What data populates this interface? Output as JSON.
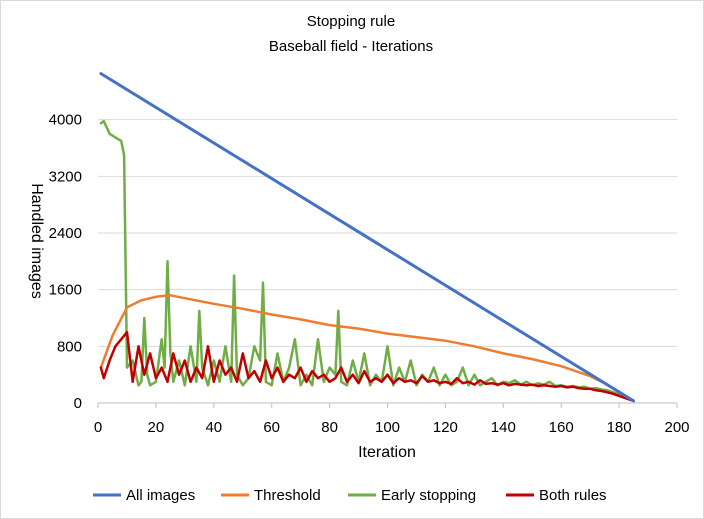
{
  "chart_data": {
    "type": "line",
    "title": "Stopping rule",
    "subtitle": "Baseball field - Iterations",
    "xlabel": "Iteration",
    "ylabel": "Handled images",
    "xlim": [
      0,
      200
    ],
    "ylim": [
      0,
      4800
    ],
    "x_ticks": [
      0,
      20,
      40,
      60,
      80,
      100,
      120,
      140,
      160,
      180,
      200
    ],
    "y_ticks": [
      0,
      800,
      1600,
      2400,
      3200,
      4000
    ],
    "grid": "horizontal",
    "legend_position": "bottom",
    "series": [
      {
        "name": "All images",
        "color": "#4472c4",
        "x": [
          1,
          185
        ],
        "y": [
          4650,
          30
        ]
      },
      {
        "name": "Threshold",
        "color": "#ed7d31",
        "x": [
          1,
          5,
          10,
          15,
          20,
          25,
          30,
          40,
          50,
          60,
          70,
          80,
          90,
          100,
          110,
          120,
          130,
          140,
          150,
          160,
          170,
          175,
          180,
          185
        ],
        "y": [
          500,
          950,
          1350,
          1450,
          1500,
          1520,
          1480,
          1400,
          1330,
          1250,
          1180,
          1100,
          1050,
          980,
          930,
          880,
          800,
          700,
          620,
          520,
          380,
          280,
          150,
          30
        ]
      },
      {
        "name": "Early stopping",
        "color": "#70ad47",
        "x": [
          1,
          2,
          4,
          6,
          8,
          9,
          10,
          12,
          14,
          15,
          16,
          17,
          18,
          20,
          22,
          23,
          24,
          25,
          26,
          28,
          30,
          32,
          34,
          35,
          36,
          38,
          40,
          42,
          44,
          46,
          47,
          48,
          50,
          52,
          54,
          56,
          57,
          58,
          60,
          62,
          64,
          66,
          68,
          70,
          72,
          74,
          76,
          78,
          80,
          82,
          83,
          84,
          86,
          88,
          90,
          92,
          94,
          96,
          98,
          100,
          102,
          104,
          106,
          108,
          110,
          112,
          114,
          116,
          118,
          120,
          122,
          124,
          126,
          128,
          130,
          132,
          134,
          136,
          138,
          140,
          142,
          144,
          146,
          148,
          150,
          152,
          154,
          156,
          158,
          160,
          162,
          164,
          166,
          168,
          170,
          172,
          174,
          176,
          178,
          180,
          182,
          185
        ],
        "y": [
          3950,
          3980,
          3800,
          3750,
          3700,
          3500,
          500,
          600,
          250,
          300,
          1200,
          400,
          250,
          300,
          900,
          500,
          2000,
          700,
          300,
          600,
          250,
          800,
          300,
          1300,
          500,
          250,
          600,
          300,
          800,
          300,
          1800,
          400,
          250,
          350,
          800,
          600,
          1700,
          300,
          250,
          700,
          300,
          500,
          900,
          250,
          400,
          250,
          900,
          300,
          500,
          400,
          1300,
          300,
          250,
          600,
          300,
          700,
          250,
          400,
          300,
          800,
          250,
          500,
          300,
          600,
          250,
          400,
          300,
          500,
          250,
          400,
          250,
          300,
          500,
          250,
          400,
          250,
          300,
          350,
          250,
          300,
          280,
          320,
          260,
          300,
          250,
          280,
          260,
          300,
          240,
          250,
          230,
          240,
          220,
          230,
          200,
          210,
          190,
          180,
          150,
          120,
          80,
          30
        ]
      },
      {
        "name": "Both rules",
        "color": "#c00000",
        "x": [
          1,
          2,
          4,
          6,
          8,
          10,
          12,
          14,
          16,
          18,
          20,
          22,
          24,
          26,
          28,
          30,
          32,
          34,
          36,
          38,
          40,
          42,
          44,
          46,
          48,
          50,
          52,
          54,
          56,
          58,
          60,
          62,
          64,
          66,
          68,
          70,
          72,
          74,
          76,
          78,
          80,
          82,
          84,
          86,
          88,
          90,
          92,
          94,
          96,
          98,
          100,
          102,
          104,
          106,
          108,
          110,
          112,
          114,
          116,
          118,
          120,
          122,
          124,
          126,
          128,
          130,
          132,
          134,
          136,
          138,
          140,
          142,
          144,
          146,
          148,
          150,
          152,
          154,
          156,
          158,
          160,
          162,
          164,
          166,
          168,
          170,
          172,
          174,
          176,
          178,
          180,
          182,
          185
        ],
        "y": [
          500,
          350,
          600,
          800,
          900,
          1000,
          300,
          800,
          400,
          700,
          350,
          500,
          300,
          700,
          400,
          600,
          300,
          500,
          350,
          800,
          300,
          600,
          400,
          500,
          300,
          700,
          350,
          450,
          300,
          600,
          350,
          500,
          300,
          400,
          350,
          500,
          300,
          450,
          350,
          400,
          300,
          350,
          500,
          300,
          400,
          280,
          450,
          300,
          350,
          300,
          400,
          280,
          350,
          300,
          320,
          280,
          380,
          300,
          320,
          280,
          300,
          270,
          350,
          280,
          300,
          260,
          320,
          270,
          280,
          260,
          280,
          250,
          270,
          260,
          250,
          260,
          240,
          250,
          240,
          230,
          240,
          220,
          230,
          210,
          200,
          200,
          180,
          170,
          150,
          130,
          100,
          70,
          30
        ]
      }
    ]
  }
}
